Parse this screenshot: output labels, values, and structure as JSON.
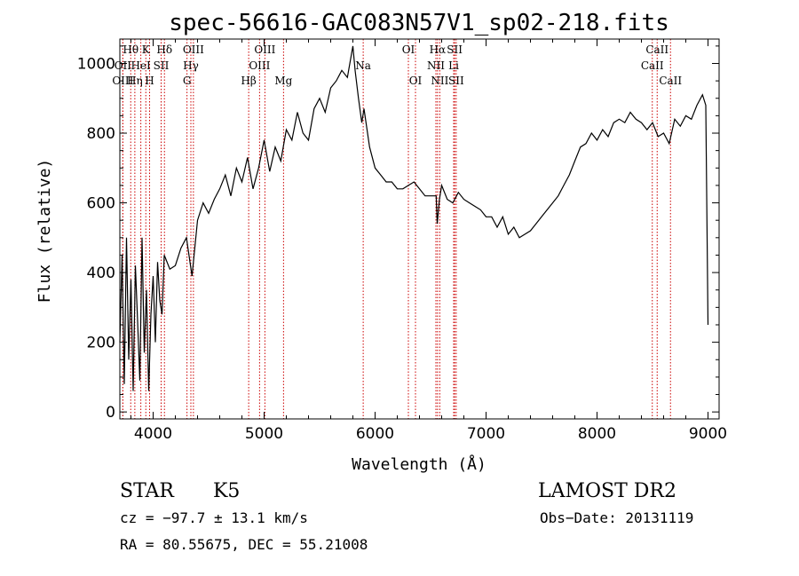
{
  "chart_data": {
    "type": "line",
    "title": "spec-56616-GAC083N57V1_sp02-218.fits",
    "xlabel": "Wavelength (Å)",
    "ylabel": "Flux (relative)",
    "xlim": [
      3700,
      9100
    ],
    "ylim": [
      -20,
      1070
    ],
    "xticks": [
      4000,
      5000,
      6000,
      7000,
      8000,
      9000
    ],
    "yticks": [
      0,
      200,
      400,
      600,
      800,
      1000
    ],
    "grid": false,
    "series": [
      {
        "x": [
          3700,
          3720,
          3740,
          3760,
          3780,
          3800,
          3820,
          3840,
          3860,
          3880,
          3900,
          3920,
          3940,
          3960,
          3980,
          4000,
          4020,
          4040,
          4060,
          4080,
          4100,
          4150,
          4200,
          4250,
          4300,
          4350,
          4400,
          4450,
          4500,
          4550,
          4600,
          4650,
          4700,
          4750,
          4800,
          4850,
          4900,
          4950,
          5000,
          5050,
          5100,
          5150,
          5200,
          5250,
          5300,
          5350,
          5400,
          5450,
          5500,
          5550,
          5600,
          5650,
          5700,
          5750,
          5800,
          5820,
          5850,
          5880,
          5900,
          5950,
          6000,
          6050,
          6100,
          6150,
          6200,
          6250,
          6300,
          6350,
          6400,
          6450,
          6500,
          6550,
          6560,
          6580,
          6600,
          6650,
          6700,
          6750,
          6800,
          6850,
          6900,
          6950,
          7000,
          7050,
          7100,
          7150,
          7200,
          7250,
          7300,
          7350,
          7400,
          7450,
          7500,
          7550,
          7600,
          7650,
          7700,
          7750,
          7800,
          7850,
          7900,
          7950,
          8000,
          8050,
          8100,
          8150,
          8200,
          8250,
          8300,
          8350,
          8400,
          8450,
          8500,
          8550,
          8600,
          8650,
          8700,
          8750,
          8800,
          8850,
          8900,
          8950,
          8980,
          9000
        ],
        "y": [
          200,
          450,
          80,
          500,
          150,
          380,
          60,
          420,
          260,
          90,
          500,
          170,
          350,
          60,
          280,
          390,
          200,
          430,
          320,
          280,
          450,
          410,
          420,
          470,
          500,
          390,
          550,
          600,
          570,
          610,
          640,
          680,
          620,
          700,
          660,
          730,
          640,
          700,
          780,
          690,
          760,
          720,
          810,
          780,
          860,
          800,
          780,
          870,
          900,
          860,
          930,
          950,
          980,
          960,
          1050,
          980,
          900,
          830,
          870,
          760,
          700,
          680,
          660,
          660,
          640,
          640,
          650,
          660,
          640,
          620,
          620,
          620,
          540,
          610,
          650,
          610,
          600,
          630,
          610,
          600,
          590,
          580,
          560,
          560,
          530,
          560,
          510,
          530,
          500,
          510,
          520,
          540,
          560,
          580,
          600,
          620,
          650,
          680,
          720,
          760,
          770,
          800,
          780,
          810,
          790,
          830,
          840,
          830,
          860,
          840,
          830,
          810,
          830,
          790,
          800,
          770,
          840,
          820,
          850,
          840,
          880,
          910,
          880,
          250
        ]
      }
    ],
    "spectral_lines": [
      {
        "name": "Hθ",
        "x": 3798,
        "row": 0
      },
      {
        "name": "K",
        "x": 3934,
        "row": 0
      },
      {
        "name": "Hδ",
        "x": 4102,
        "row": 0
      },
      {
        "name": "OIII",
        "x": 4363,
        "row": 0
      },
      {
        "name": "OIII",
        "x": 5007,
        "row": 0
      },
      {
        "name": "OI",
        "x": 6300,
        "row": 0
      },
      {
        "name": "Hα",
        "x": 6563,
        "row": 0
      },
      {
        "name": "SII",
        "x": 6717,
        "row": 0
      },
      {
        "name": "CaII",
        "x": 8542,
        "row": 0
      },
      {
        "name": "OII",
        "x": 3727,
        "row": 1
      },
      {
        "name": "HeI",
        "x": 3889,
        "row": 1
      },
      {
        "name": "SII",
        "x": 4072,
        "row": 1
      },
      {
        "name": "Hγ",
        "x": 4340,
        "row": 1
      },
      {
        "name": "OIII",
        "x": 4959,
        "row": 1
      },
      {
        "name": "Na",
        "x": 5893,
        "row": 1
      },
      {
        "name": "NII",
        "x": 6548,
        "row": 1
      },
      {
        "name": "Li",
        "x": 6708,
        "row": 1
      },
      {
        "name": "CaII",
        "x": 8498,
        "row": 1
      },
      {
        "name": "OIII",
        "x": 3727,
        "row": 2
      },
      {
        "name": "Hη",
        "x": 3835,
        "row": 2
      },
      {
        "name": "H",
        "x": 3968,
        "row": 2
      },
      {
        "name": "G",
        "x": 4305,
        "row": 2
      },
      {
        "name": "Hβ",
        "x": 4861,
        "row": 2
      },
      {
        "name": "Mg",
        "x": 5175,
        "row": 2
      },
      {
        "name": "OI",
        "x": 6364,
        "row": 2
      },
      {
        "name": "NII",
        "x": 6583,
        "row": 2
      },
      {
        "name": "SII",
        "x": 6731,
        "row": 2
      },
      {
        "name": "CaII",
        "x": 8662,
        "row": 2
      }
    ],
    "colors": {
      "spectrum": "#000000",
      "lines": "#cc0000"
    }
  },
  "info": {
    "object_class": "STAR",
    "subclass": "K5",
    "survey": "LAMOST DR2",
    "cz": "cz = −97.7 ± 13.1 km/s",
    "obs_date": "Obs−Date: 20131119",
    "radec": "RA =  80.55675, DEC =  55.21008"
  }
}
